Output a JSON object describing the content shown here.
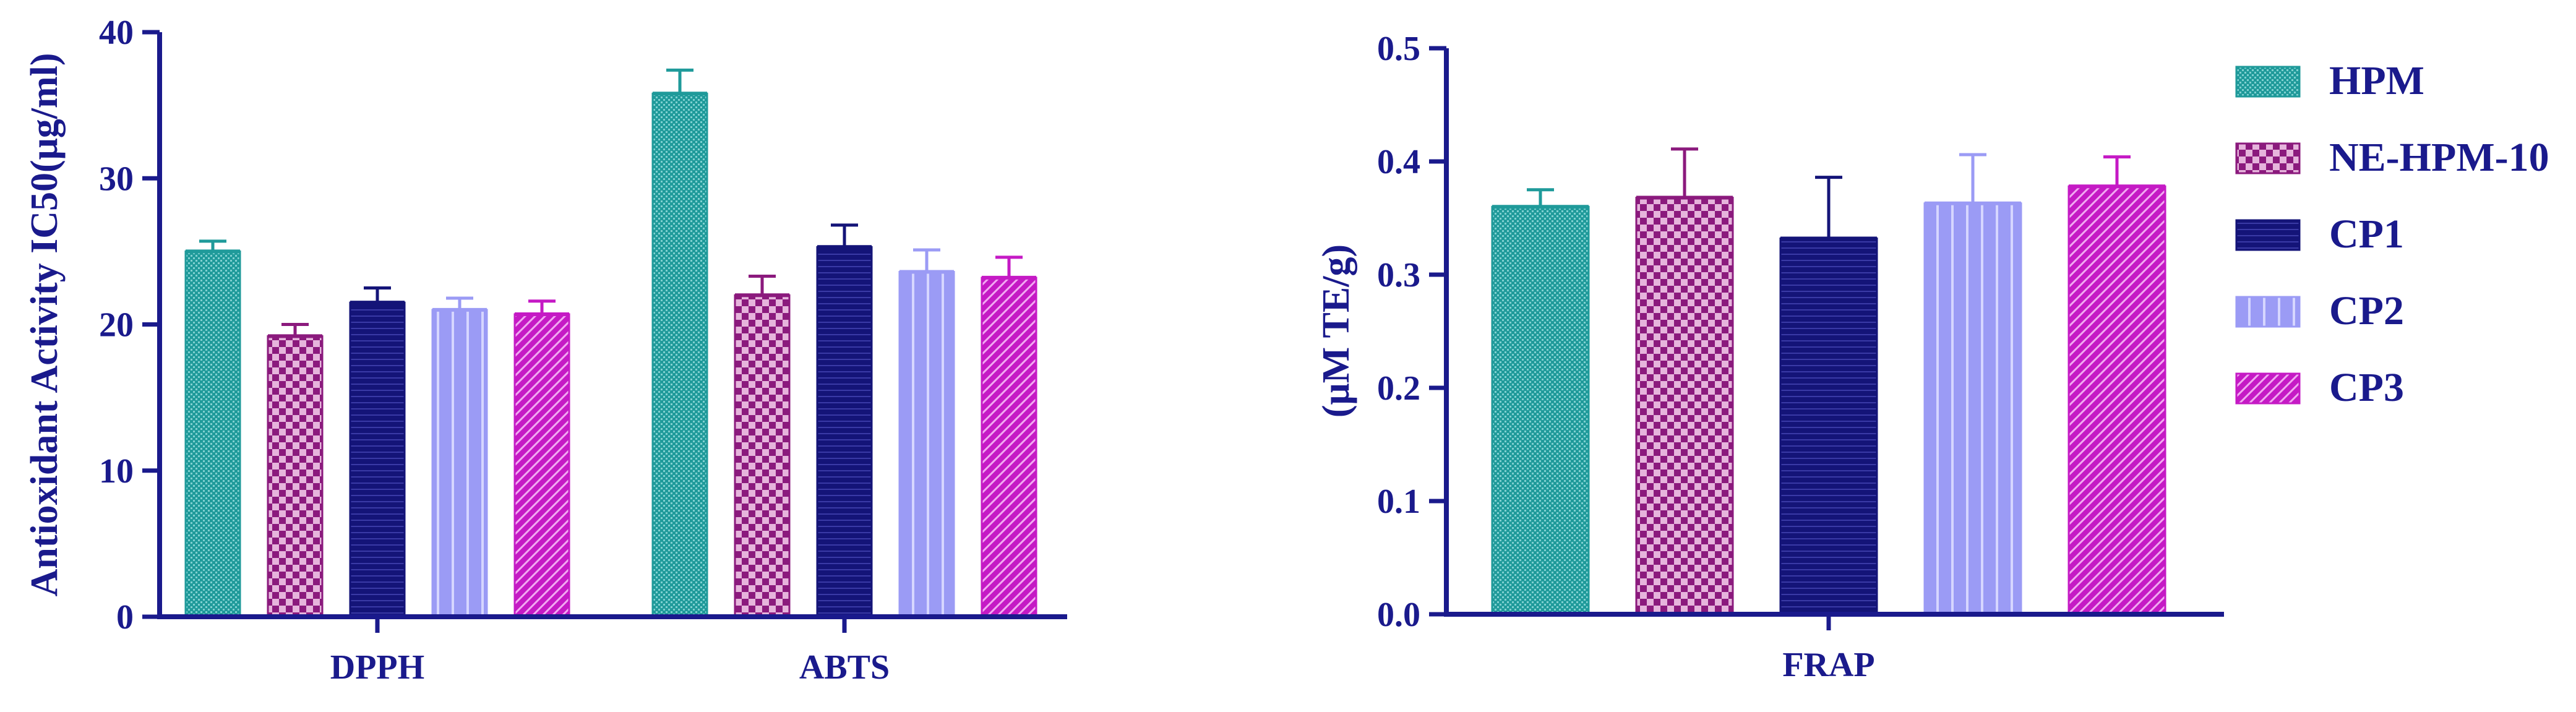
{
  "colors": {
    "axis": "#1a1a8c",
    "HPM": "#1f9a9a",
    "NE-HPM-10": "#8b1a7d",
    "CP1": "#141478",
    "CP2": "#9b9bf5",
    "CP3": "#c51ac5"
  },
  "chart_data": [
    {
      "type": "bar",
      "ylabel": "Antioxidant Activity IC50(μg/ml)",
      "xlabel": "",
      "ylim": [
        0,
        40
      ],
      "yticks": [
        0,
        10,
        20,
        30,
        40
      ],
      "categories": [
        "DPPH",
        "ABTS"
      ],
      "series": [
        {
          "name": "HPM",
          "values": [
            25.0,
            35.8
          ],
          "errors": [
            0.7,
            1.6
          ]
        },
        {
          "name": "NE-HPM-10",
          "values": [
            19.2,
            22.0
          ],
          "errors": [
            0.8,
            1.3
          ]
        },
        {
          "name": "CP1",
          "values": [
            21.5,
            25.3
          ],
          "errors": [
            1.0,
            1.5
          ]
        },
        {
          "name": "CP2",
          "values": [
            21.0,
            23.6
          ],
          "errors": [
            0.8,
            1.5
          ]
        },
        {
          "name": "CP3",
          "values": [
            20.7,
            23.2
          ],
          "errors": [
            0.9,
            1.4
          ]
        }
      ]
    },
    {
      "type": "bar",
      "ylabel": "(μM TE/g)",
      "xlabel": "",
      "ylim": [
        0,
        0.5
      ],
      "yticks": [
        "0.0",
        "0.1",
        "0.2",
        "0.3",
        "0.4",
        "0.5"
      ],
      "categories": [
        "FRAP"
      ],
      "series": [
        {
          "name": "HPM",
          "values": [
            0.36
          ],
          "errors": [
            0.015
          ]
        },
        {
          "name": "NE-HPM-10",
          "values": [
            0.368
          ],
          "errors": [
            0.043
          ]
        },
        {
          "name": "CP1",
          "values": [
            0.332
          ],
          "errors": [
            0.054
          ]
        },
        {
          "name": "CP2",
          "values": [
            0.363
          ],
          "errors": [
            0.043
          ]
        },
        {
          "name": "CP3",
          "values": [
            0.378
          ],
          "errors": [
            0.026
          ]
        }
      ]
    }
  ],
  "legend": {
    "placement": "right",
    "items": [
      "HPM",
      "NE-HPM-10",
      "CP1",
      "CP2",
      "CP3"
    ]
  }
}
